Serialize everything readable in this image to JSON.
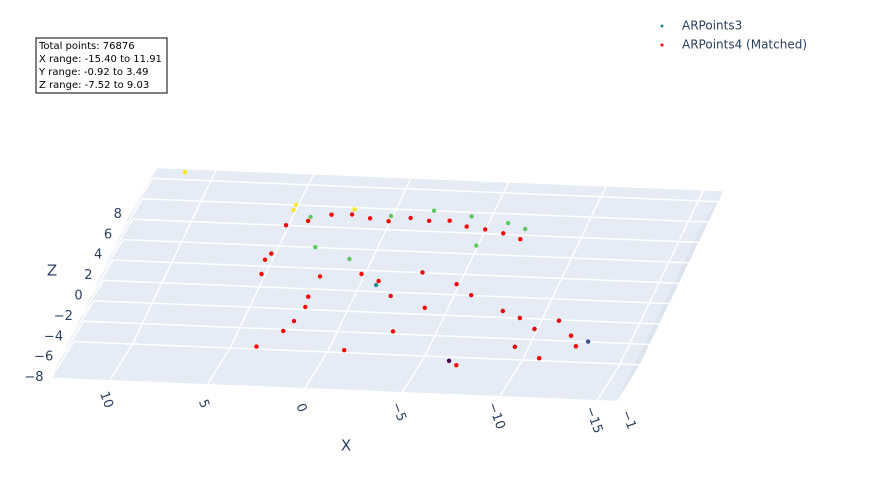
{
  "chart_data": {
    "type": "scatter3d",
    "annotations": [
      "Total points: 76876",
      "X range: -15.40 to 11.91",
      "Y range: -0.92 to 3.49",
      "Z range: -7.52 to 9.03"
    ],
    "xlabel": "X",
    "zlabel": "Z",
    "xlim": [
      -16,
      13
    ],
    "ylim": [
      -1,
      3.5
    ],
    "zlim": [
      -8,
      9
    ],
    "xticks": [
      10,
      5,
      0,
      {
        "value": -5,
        "label": "−5"
      },
      {
        "value": -10,
        "label": "−10"
      },
      {
        "value": -15,
        "label": "−15"
      }
    ],
    "yticks": [
      {
        "value": -1,
        "label": "−1"
      }
    ],
    "zticks": [
      8,
      6,
      4,
      2,
      0,
      {
        "value": -2,
        "label": "−2"
      },
      {
        "value": -4,
        "label": "−4"
      },
      {
        "value": -6,
        "label": "−6"
      },
      {
        "value": -8,
        "label": "−8"
      }
    ],
    "colorscale": [
      "#440154",
      "#3b528b",
      "#21918c",
      "#5ec962",
      "#fde725"
    ],
    "series": [
      {
        "name": "ARPoints3",
        "color": "#21918c",
        "x": [
          5,
          5,
          11.5,
          4,
          2,
          0,
          -2,
          -4,
          -6,
          -7,
          -3,
          -1,
          3,
          -8,
          -9,
          -10,
          -11,
          -12,
          -12.5,
          -9.5,
          -11,
          -13,
          -5,
          1,
          -6.5
        ],
        "y": [
          1,
          1,
          3.4,
          1.5,
          2,
          2,
          2.5,
          3,
          3,
          3,
          1,
          0.5,
          1,
          0.5,
          1,
          1,
          1.5,
          1,
          1,
          0,
          0,
          1,
          2,
          1,
          0.5
        ],
        "z": [
          8,
          7.5,
          8.8,
          6.5,
          7,
          6.5,
          6.8,
          6,
          5.5,
          5,
          2,
          1,
          4,
          -1,
          -2,
          -3,
          -2.5,
          -3.5,
          -4.5,
          -4,
          -5,
          -4,
          4,
          3,
          -6
        ]
      },
      {
        "name": "ARPoints4 (Matched)",
        "color": "#ff0000",
        "x": [
          5,
          4,
          3,
          2,
          1,
          0,
          -1,
          -2,
          -3,
          -4,
          -5,
          -6,
          -7,
          5,
          5,
          5.2,
          2,
          2.1,
          2,
          2.2,
          0,
          -1,
          -2,
          -3,
          -4,
          -5,
          -6,
          -3,
          -1,
          -8,
          -9,
          -10,
          -11,
          -12,
          -9.5,
          -11,
          -12.5,
          -7,
          2.5,
          3.5
        ],
        "y": [
          1,
          1,
          1.5,
          2,
          2,
          2,
          2.5,
          2.5,
          3,
          3,
          3,
          3,
          3,
          0,
          0,
          0.5,
          0,
          0,
          0,
          -0.5,
          0.5,
          1,
          0.5,
          1,
          0.5,
          1,
          1,
          0,
          0,
          0.5,
          1,
          1,
          1.5,
          1,
          0,
          0,
          1,
          0,
          -0.5,
          0
        ],
        "z": [
          6,
          6.5,
          6.8,
          6.5,
          6.2,
          6,
          6,
          5.8,
          5.5,
          5,
          4.8,
          4.5,
          4,
          2,
          4,
          3,
          2,
          0,
          -1,
          -2,
          2,
          1,
          0,
          2,
          -1,
          1,
          0,
          -3,
          -5,
          -1,
          -2,
          -3,
          -2.5,
          -3.5,
          -4,
          -5,
          -4.5,
          -6,
          -3,
          -5
        ]
      }
    ]
  }
}
